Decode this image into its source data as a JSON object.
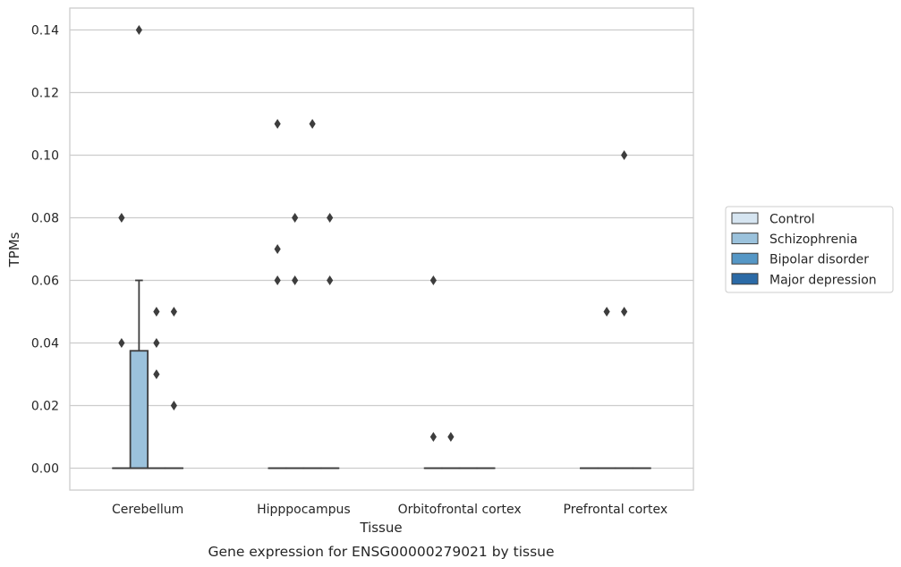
{
  "chart_data": {
    "type": "box",
    "title": "",
    "caption": "Gene expression for ENSG00000279021 by tissue",
    "xlabel": "Tissue",
    "ylabel": "TPMs",
    "ylim": [
      -0.007,
      0.147
    ],
    "yticks": [
      0.0,
      0.02,
      0.04,
      0.06,
      0.08,
      0.1,
      0.12,
      0.14
    ],
    "ytick_labels": [
      "0.00",
      "0.02",
      "0.04",
      "0.06",
      "0.08",
      "0.10",
      "0.12",
      "0.14"
    ],
    "grid": true,
    "legend_position": "right",
    "categories": [
      "Cerebellum",
      "Hipppocampus",
      "Orbitofrontal cortex",
      "Prefrontal cortex"
    ],
    "series": [
      {
        "name": "Control",
        "color": "#d6e5f1"
      },
      {
        "name": "Schizophrenia",
        "color": "#9bc2dc"
      },
      {
        "name": "Bipolar disorder",
        "color": "#5597c6"
      },
      {
        "name": "Major depression",
        "color": "#2b6aa6"
      }
    ],
    "boxes": [
      {
        "category": 0,
        "series": 0,
        "q1": 0,
        "median": 0,
        "q3": 0,
        "whisker_low": 0,
        "whisker_high": 0,
        "outliers": [
          0.08,
          0.04
        ]
      },
      {
        "category": 0,
        "series": 1,
        "q1": 0,
        "median": 0,
        "q3": 0.0375,
        "whisker_low": 0,
        "whisker_high": 0.06,
        "outliers": [
          0.14
        ]
      },
      {
        "category": 0,
        "series": 2,
        "q1": 0,
        "median": 0,
        "q3": 0,
        "whisker_low": 0,
        "whisker_high": 0,
        "outliers": [
          0.05,
          0.04,
          0.03
        ]
      },
      {
        "category": 0,
        "series": 3,
        "q1": 0,
        "median": 0,
        "q3": 0,
        "whisker_low": 0,
        "whisker_high": 0,
        "outliers": [
          0.05,
          0.02
        ]
      },
      {
        "category": 1,
        "series": 0,
        "q1": 0,
        "median": 0,
        "q3": 0,
        "whisker_low": 0,
        "whisker_high": 0,
        "outliers": [
          0.11,
          0.07,
          0.06
        ]
      },
      {
        "category": 1,
        "series": 1,
        "q1": 0,
        "median": 0,
        "q3": 0,
        "whisker_low": 0,
        "whisker_high": 0,
        "outliers": [
          0.08,
          0.06
        ]
      },
      {
        "category": 1,
        "series": 2,
        "q1": 0,
        "median": 0,
        "q3": 0,
        "whisker_low": 0,
        "whisker_high": 0,
        "outliers": [
          0.11
        ]
      },
      {
        "category": 1,
        "series": 3,
        "q1": 0,
        "median": 0,
        "q3": 0,
        "whisker_low": 0,
        "whisker_high": 0,
        "outliers": [
          0.08,
          0.06
        ]
      },
      {
        "category": 2,
        "series": 0,
        "q1": 0,
        "median": 0,
        "q3": 0,
        "whisker_low": 0,
        "whisker_high": 0,
        "outliers": [
          0.06,
          0.01
        ]
      },
      {
        "category": 2,
        "series": 1,
        "q1": 0,
        "median": 0,
        "q3": 0,
        "whisker_low": 0,
        "whisker_high": 0,
        "outliers": [
          0.01
        ]
      },
      {
        "category": 2,
        "series": 2,
        "q1": 0,
        "median": 0,
        "q3": 0,
        "whisker_low": 0,
        "whisker_high": 0,
        "outliers": []
      },
      {
        "category": 2,
        "series": 3,
        "q1": 0,
        "median": 0,
        "q3": 0,
        "whisker_low": 0,
        "whisker_high": 0,
        "outliers": []
      },
      {
        "category": 3,
        "series": 0,
        "q1": 0,
        "median": 0,
        "q3": 0,
        "whisker_low": 0,
        "whisker_high": 0,
        "outliers": []
      },
      {
        "category": 3,
        "series": 1,
        "q1": 0,
        "median": 0,
        "q3": 0,
        "whisker_low": 0,
        "whisker_high": 0,
        "outliers": [
          0.05
        ]
      },
      {
        "category": 3,
        "series": 2,
        "q1": 0,
        "median": 0,
        "q3": 0,
        "whisker_low": 0,
        "whisker_high": 0,
        "outliers": [
          0.1,
          0.05
        ]
      },
      {
        "category": 3,
        "series": 3,
        "q1": 0,
        "median": 0,
        "q3": 0,
        "whisker_low": 0,
        "whisker_high": 0,
        "outliers": []
      }
    ]
  }
}
